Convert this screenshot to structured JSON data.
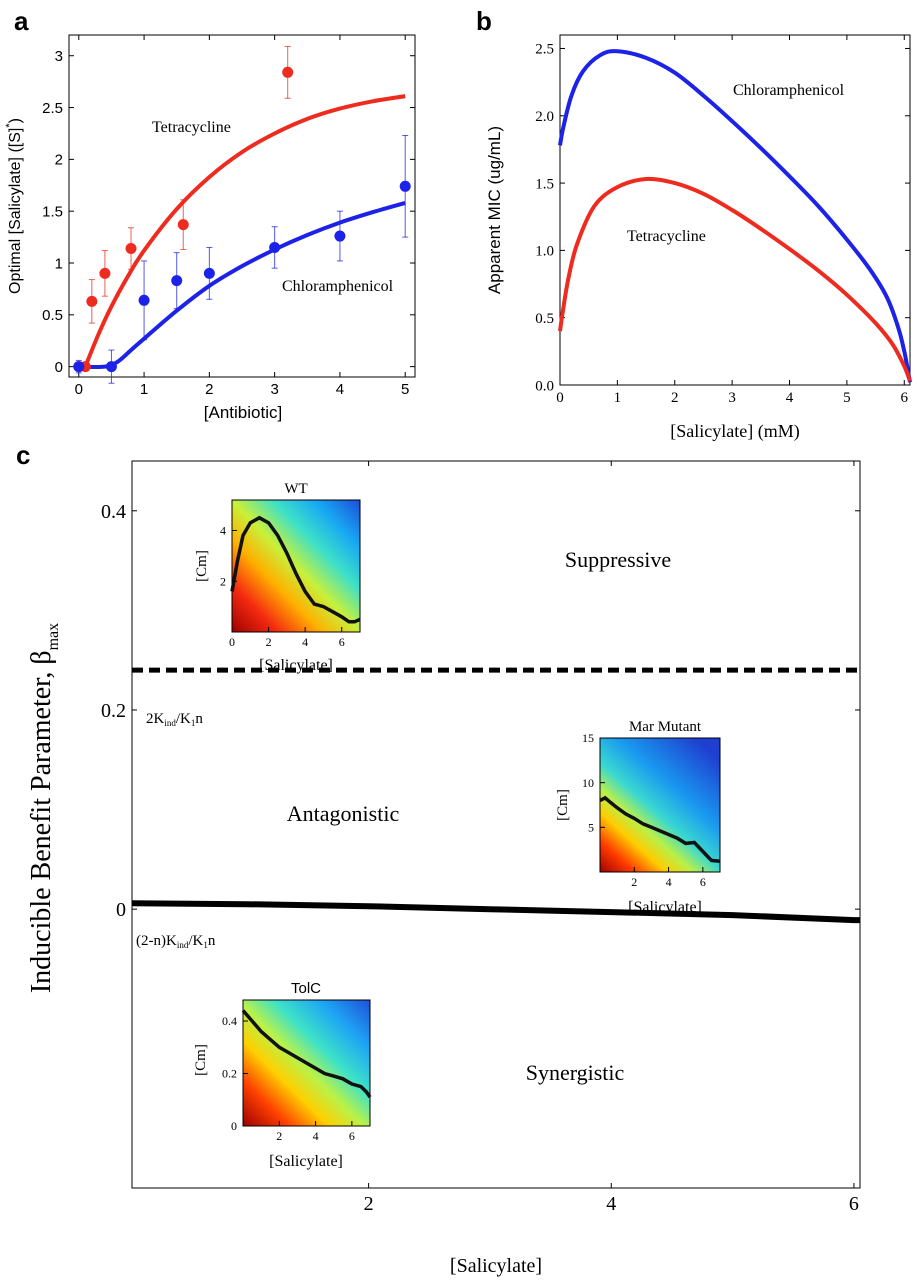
{
  "chart_data": [
    {
      "panel": "a",
      "type": "scatter",
      "xlabel": "[Antibiotic]",
      "ylabel": "Optimal [Salicylate] ([S]*)",
      "xlim": [
        -0.15,
        5.15
      ],
      "ylim": [
        -0.1,
        3.2
      ],
      "xticks": [
        0,
        1,
        2,
        3,
        4,
        5
      ],
      "yticks": [
        0,
        0.5,
        1,
        1.5,
        2,
        2.5,
        3
      ],
      "grid": false,
      "series": [
        {
          "name": "Tetracycline",
          "color": "#ee2b1f",
          "points": [
            {
              "x": 0,
              "y": 0,
              "err": 0.03
            },
            {
              "x": 0.1,
              "y": 0,
              "err": 0.03
            },
            {
              "x": 0.2,
              "y": 0.63,
              "err": 0.21
            },
            {
              "x": 0.4,
              "y": 0.9,
              "err": 0.22
            },
            {
              "x": 0.8,
              "y": 1.14,
              "err": 0.2
            },
            {
              "x": 1.6,
              "y": 1.37,
              "err": 0.24
            },
            {
              "x": 3.2,
              "y": 2.84,
              "err": 0.25
            }
          ],
          "fit": {
            "x": [
              0.1,
              0.3,
              0.5,
              0.75,
              1.0,
              1.5,
              2.0,
              2.5,
              3.0,
              3.5,
              4.0,
              4.5,
              5.0
            ],
            "y": [
              0.0,
              0.31,
              0.58,
              0.87,
              1.12,
              1.52,
              1.83,
              2.07,
              2.25,
              2.39,
              2.49,
              2.56,
              2.61
            ]
          }
        },
        {
          "name": "Chloramphenicol",
          "color": "#1c22e8",
          "points": [
            {
              "x": 0,
              "y": 0,
              "err": 0.06
            },
            {
              "x": 0.5,
              "y": 0,
              "err": 0.16
            },
            {
              "x": 1,
              "y": 0.64,
              "err": 0.38
            },
            {
              "x": 1.5,
              "y": 0.83,
              "err": 0.27
            },
            {
              "x": 2,
              "y": 0.9,
              "err": 0.25
            },
            {
              "x": 3,
              "y": 1.15,
              "err": 0.2
            },
            {
              "x": 4,
              "y": 1.26,
              "err": 0.24
            },
            {
              "x": 5,
              "y": 1.74,
              "err": 0.49
            }
          ],
          "fit": {
            "x": [
              0.0,
              0.4,
              0.6,
              0.8,
              1.0,
              1.5,
              2.0,
              2.5,
              3.0,
              3.5,
              4.0,
              4.5,
              5.0
            ],
            "y": [
              0.0,
              0.0,
              0.05,
              0.16,
              0.27,
              0.54,
              0.78,
              0.97,
              1.13,
              1.27,
              1.39,
              1.49,
              1.58
            ]
          }
        }
      ],
      "annotations": [
        "Tetracycline",
        "Chloramphenicol"
      ]
    },
    {
      "panel": "b",
      "type": "line",
      "xlabel": "[Salicylate] (mM)",
      "ylabel": "Apparent MIC (ug/mL)",
      "xlim": [
        0,
        6.1
      ],
      "ylim": [
        0,
        2.6
      ],
      "xticks": [
        0,
        1,
        2,
        3,
        4,
        5,
        6
      ],
      "yticks": [
        "0.0",
        "0.5",
        "1.0",
        "1.5",
        "2.0",
        "2.5"
      ],
      "grid": false,
      "series": [
        {
          "name": "Chloramphenicol",
          "color": "#1c22e8",
          "x": [
            0,
            0.05,
            0.2,
            0.4,
            0.7,
            1.0,
            1.5,
            2.0,
            2.5,
            3.0,
            3.5,
            4.0,
            4.5,
            5.0,
            5.4,
            5.7,
            5.9,
            6.0,
            6.05,
            6.1
          ],
          "y": [
            1.78,
            1.9,
            2.15,
            2.33,
            2.45,
            2.48,
            2.43,
            2.32,
            2.15,
            1.96,
            1.76,
            1.55,
            1.33,
            1.08,
            0.86,
            0.65,
            0.42,
            0.25,
            0.14,
            0.02
          ]
        },
        {
          "name": "Tetracycline",
          "color": "#ee2b1f",
          "x": [
            0,
            0.05,
            0.15,
            0.3,
            0.6,
            1.0,
            1.5,
            2.0,
            2.5,
            3.0,
            3.5,
            4.0,
            4.5,
            5.0,
            5.5,
            5.8,
            6.0,
            6.1
          ],
          "y": [
            0.4,
            0.55,
            0.8,
            1.05,
            1.33,
            1.47,
            1.53,
            1.5,
            1.42,
            1.3,
            1.16,
            1.01,
            0.85,
            0.67,
            0.46,
            0.3,
            0.14,
            0.03
          ]
        }
      ],
      "annotations": [
        "Chloramphenicol",
        "Tetracycline"
      ]
    },
    {
      "panel": "c",
      "type": "line",
      "xlabel": "[Salicylate]",
      "ylabel": "Inducible Benefit Parameter, β",
      "ylabel_subscript": "max",
      "xlim": [
        0.05,
        6.05
      ],
      "ylim": [
        -0.28,
        0.45
      ],
      "xticks": [
        2,
        4,
        6
      ],
      "yticks": [
        "0",
        "0.2",
        "0.4"
      ],
      "threshold_dashed": {
        "y": 0.24,
        "label": "2K",
        "label_sub1": "ind",
        "label_mid": "/K",
        "label_sub2": "1",
        "label_end": "n"
      },
      "boundary_line": {
        "x": [
          0.05,
          1,
          2,
          3,
          4,
          5,
          6,
          6.05
        ],
        "y": [
          0.006,
          0.005,
          0.003,
          0.0,
          -0.003,
          -0.006,
          -0.011,
          -0.011
        ],
        "label": "(2-n)K",
        "label_sub1": "ind",
        "label_mid": "/K",
        "label_sub2": "1",
        "label_end": "n"
      },
      "regions": [
        "Suppressive",
        "Antagonistic",
        "Synergistic"
      ],
      "insets": [
        {
          "title": "WT",
          "type": "heatmap",
          "xlabel": "[Salicylate]",
          "ylabel": "[Cm]",
          "xlim": [
            0,
            7
          ],
          "ylim": [
            0,
            5.2
          ],
          "xticks": [
            0,
            2,
            4,
            6
          ],
          "yticks": [
            2,
            4
          ],
          "curve_x": [
            0,
            0.3,
            0.6,
            1.0,
            1.5,
            2.0,
            2.5,
            3.0,
            3.5,
            4.0,
            4.5,
            5.0,
            5.5,
            6.0,
            6.4,
            6.7,
            7.0
          ],
          "curve_y": [
            1.6,
            2.8,
            3.8,
            4.3,
            4.5,
            4.3,
            3.8,
            3.1,
            2.3,
            1.6,
            1.1,
            1.0,
            0.8,
            0.6,
            0.4,
            0.4,
            0.5
          ]
        },
        {
          "title": "Mar Mutant",
          "type": "heatmap",
          "xlabel": "[Salicylate]",
          "ylabel": "[Cm]",
          "xlim": [
            0,
            7
          ],
          "ylim": [
            0,
            15
          ],
          "xticks": [
            2,
            4,
            6
          ],
          "yticks": [
            5,
            10,
            15
          ],
          "curve_x": [
            0,
            0.3,
            0.6,
            1.0,
            1.5,
            2.0,
            2.5,
            3.0,
            3.5,
            4.0,
            4.5,
            5.0,
            5.5,
            6.0,
            6.5,
            7.0
          ],
          "curve_y": [
            8.0,
            8.3,
            7.8,
            7.2,
            6.5,
            6.0,
            5.4,
            5.0,
            4.6,
            4.2,
            3.8,
            3.2,
            3.3,
            2.3,
            1.3,
            1.2
          ]
        },
        {
          "title": "TolC",
          "type": "heatmap",
          "xlabel": "[Salicylate]",
          "ylabel": "[Cm]",
          "xlim": [
            0,
            7
          ],
          "ylim": [
            0,
            0.48
          ],
          "xticks": [
            2,
            4,
            6
          ],
          "yticks": [
            "0",
            "0.2",
            "0.4"
          ],
          "curve_x": [
            0,
            0.5,
            1.0,
            1.5,
            2.0,
            2.5,
            3.0,
            3.5,
            4.0,
            4.5,
            5.0,
            5.5,
            6.0,
            6.5,
            6.8,
            7.0
          ],
          "curve_y": [
            0.44,
            0.4,
            0.36,
            0.33,
            0.3,
            0.28,
            0.26,
            0.24,
            0.22,
            0.2,
            0.19,
            0.18,
            0.16,
            0.15,
            0.13,
            0.11
          ]
        }
      ]
    }
  ],
  "panel_letters": {
    "a": "a",
    "b": "b",
    "c": "c"
  },
  "text": {
    "a_tet": "Tetracycline",
    "a_chl": "Chloramphenicol",
    "a_ylabel_main": "Optimal [Salicylate] ([S]",
    "a_ylabel_star": "*",
    "a_ylabel_end": ")",
    "b_chl": "Chloramphenicol",
    "b_tet": "Tetracycline",
    "c_ylabel_main": "Inducible Benefit Parameter, β",
    "c_ylabel_sub": "max"
  }
}
